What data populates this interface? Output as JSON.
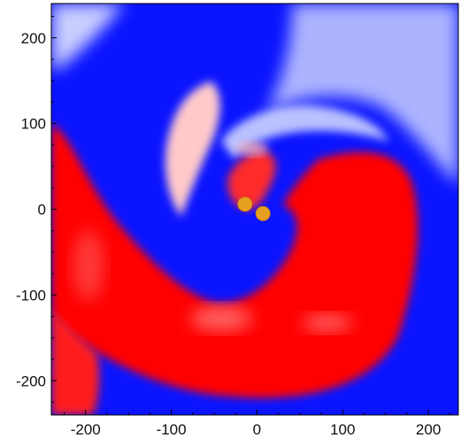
{
  "chart_data": {
    "type": "heatmap",
    "title": "",
    "xlabel": "",
    "ylabel": "",
    "xlim": [
      -240,
      235
    ],
    "ylim": [
      -240,
      240
    ],
    "x_ticks": [
      "-200",
      "-100",
      "0",
      "100",
      "200"
    ],
    "y_ticks": [
      "200",
      "100",
      "0",
      "-100",
      "-200"
    ],
    "colormap": {
      "negative": "#0a14ff",
      "zero": "#ffffff",
      "positive": "#ff0000"
    },
    "point_color": "#e8a020",
    "points": [
      {
        "x": -14,
        "y": 6
      },
      {
        "x": 7,
        "y": -5
      }
    ],
    "features": [
      {
        "label": "spiral arm",
        "sign": "positive"
      },
      {
        "label": "inner lobe",
        "sign": "positive"
      },
      {
        "label": "background",
        "sign": "negative"
      }
    ]
  }
}
